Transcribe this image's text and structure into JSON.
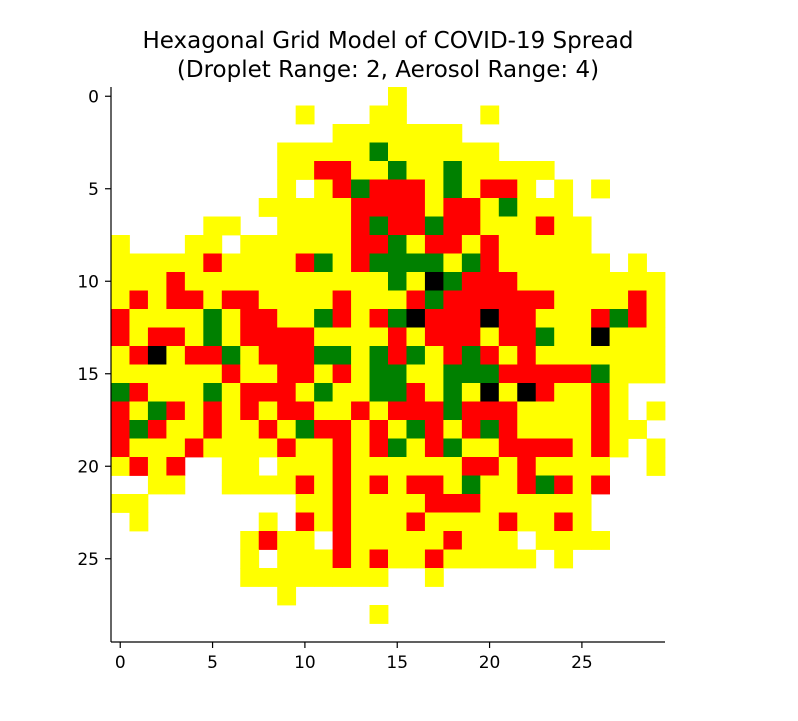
{
  "chart_data": {
    "type": "heatmap",
    "title": "Hexagonal Grid Model of COVID-19 Spread",
    "subtitle": "(Droplet Range: 2, Aerosol Range: 4)",
    "xlim": [
      -0.5,
      29.5
    ],
    "ylim": [
      29.5,
      -0.5
    ],
    "x_ticks": [
      0,
      5,
      10,
      15,
      20,
      25
    ],
    "y_ticks": [
      0,
      5,
      10,
      15,
      20,
      25
    ],
    "grid": false,
    "legend": "none",
    "colors": {
      "W": "#ffffff",
      "Y": "#ffff00",
      "R": "#ff0000",
      "G": "#008000",
      "K": "#000000"
    },
    "cells": [
      "WWWWWWWWWWWWWWWYWWWWWWWWWWWWWW",
      "WWWWWWWWWWYWWWYYWWWWYWWWWWWWWW",
      "WWWWWWWWWWWWYYYYYYYWWWWWWWWWWW",
      "WWWWWWWWWYYYYYGYYYYYYWWWWWWWWW",
      "WWWWWWWWWYYRRYYGYYGYYYYYWWWWWW",
      "WWWWWWWWWYWYRGRRRYGYRRYWYWYWWW",
      "WWWWWWWWYYYYYRRRRYRRYGYYYWWWWW",
      "WWWWWYYWWYYYYRGRRGRRYYYRYYWWWW",
      "YWWWYYWYYYYYYRRGYRRYRYYYYYWWWW",
      "YYYYYRYYYYRGYRGGGGYGRYYYYYYWYW",
      "YYYRYYYYYYYYYYYGYKGRRRYYYYYYYY",
      "YRYRRYRRYYYYRYYYRGRRRRRRYYYYRY",
      "RYYYYGYRRYYGRYRGKRRRKRRYYYRGRY",
      "RYRRYGYRRRRYYYYRYRRRYRRGYYKYYY",
      "YRKYRRGYRRRGGYGRGYRGRYRYYYYYYY",
      "YYYYYYRYYRRYRYGGYYGGGRRRRRGYYY",
      "GRYYYGYRRRYGYYGGRYGYKYKRYYRYWW",
      "RYGRYRYRYRRYYRYRRRGRRRYYYYRYWY",
      "RGRYYRYYRYGRRYRYGRYRGRYYYYRYYW",
      "RYYYRYYYYRYYRYRGYRGYYRRRRYRYWY",
      "YRYRWWYYWYYYRYYYYYYRRYRYYYYWWY",
      "WWYYWWYYYYRYRYRYRRYGYYRGRYRWWW",
      "YYWWWWWWWWYYRYYYYRRRYYYYYYWWWW",
      "WYWWWWWWYWRYRYYYRYYYYRYYRYWWWW",
      "WWWWWWWYRYYWRYYYYYRYYYWYYYYWWW",
      "WWWWWWWYWYYYRYRYYRYYYYYWYWWWWW",
      "WWWWWWWYYYYYYYYWWYWWWWWWWWWWWW",
      "WWWWWWWWWYWWWWWWWWWWWWWWWWWWWW",
      "WWWWWWWWWWWWWWYWWWWWWWWWWWWWWW",
      "WWWWWWWWWWWWWWWWWWWWWWWWWWWWWW"
    ]
  }
}
